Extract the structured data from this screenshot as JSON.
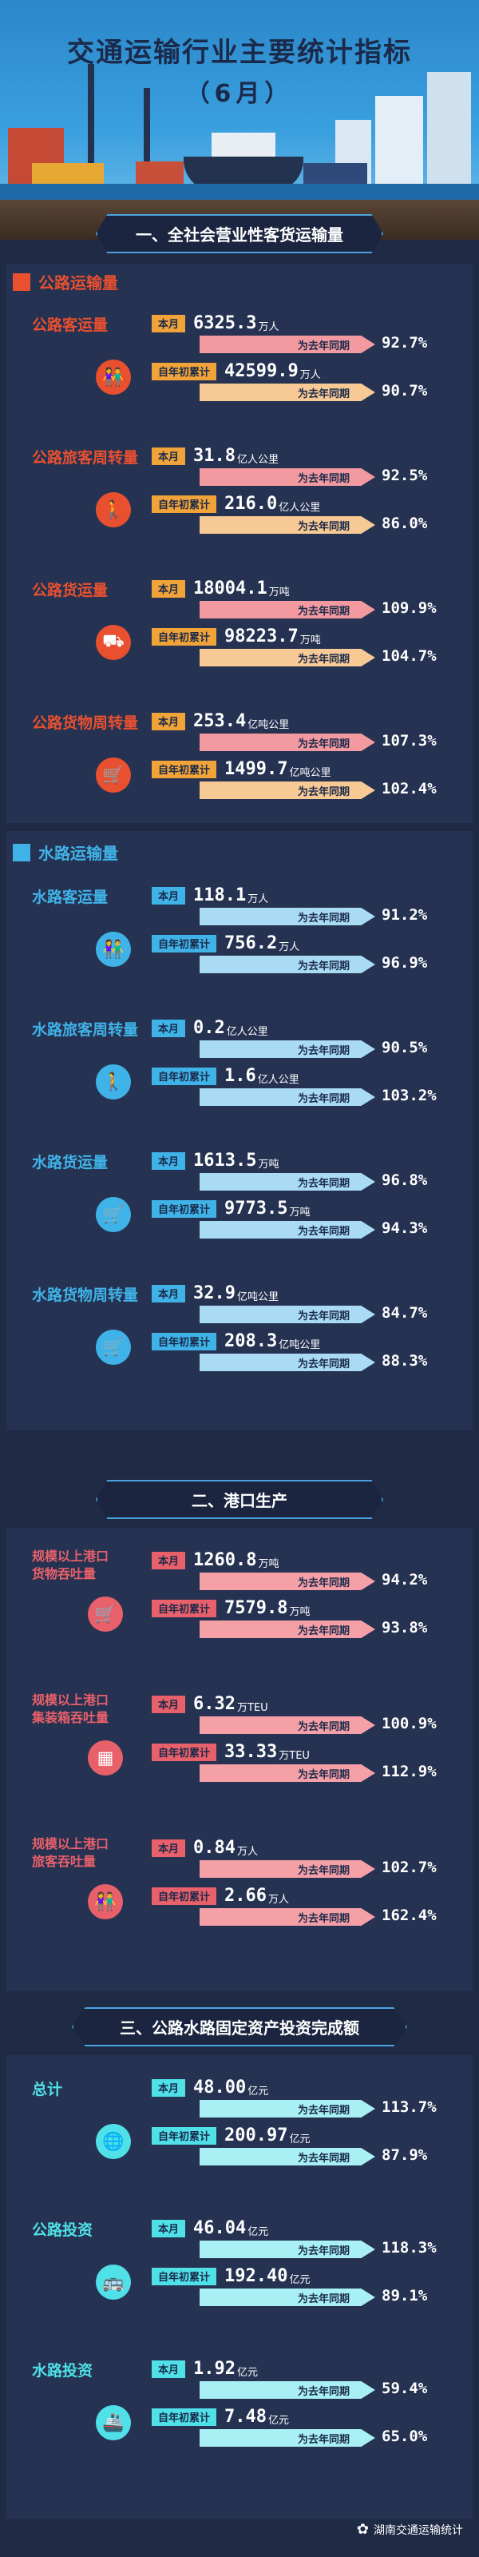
{
  "title": "交通运输行业主要统计指标",
  "subtitle": "（6月）",
  "section1": "一、全社会营业性客货运输量",
  "road_header": "公路运输量",
  "water_header": "水路运输量",
  "section2": "二、港口生产",
  "section3": "三、公路水路固定资产投资完成额",
  "tag_month": "本月",
  "tag_ytd": "自年初累计",
  "yoy": "为去年同期",
  "road": [
    {
      "label": "公路客运量",
      "icon": "people-icon",
      "month": "6325.3",
      "month_unit": "万人",
      "month_pct": "92.7%",
      "ytd": "42599.9",
      "ytd_unit": "万人",
      "ytd_pct": "90.7%"
    },
    {
      "label": "公路旅客周转量",
      "icon": "traveler-icon",
      "month": "31.8",
      "month_unit": "亿人公里",
      "month_pct": "92.5%",
      "ytd": "216.0",
      "ytd_unit": "亿人公里",
      "ytd_pct": "86.0%"
    },
    {
      "label": "公路货运量",
      "icon": "truck-icon",
      "month": "18004.1",
      "month_unit": "万吨",
      "month_pct": "109.9%",
      "ytd": "98223.7",
      "ytd_unit": "万吨",
      "ytd_pct": "104.7%"
    },
    {
      "label": "公路货物周转量",
      "icon": "cart-icon",
      "month": "253.4",
      "month_unit": "亿吨公里",
      "month_pct": "107.3%",
      "ytd": "1499.7",
      "ytd_unit": "亿吨公里",
      "ytd_pct": "102.4%"
    }
  ],
  "water": [
    {
      "label": "水路客运量",
      "icon": "people-icon",
      "month": "118.1",
      "month_unit": "万人",
      "month_pct": "91.2%",
      "ytd": "756.2",
      "ytd_unit": "万人",
      "ytd_pct": "96.9%"
    },
    {
      "label": "水路旅客周转量",
      "icon": "traveler-icon",
      "month": "0.2",
      "month_unit": "亿人公里",
      "month_pct": "90.5%",
      "ytd": "1.6",
      "ytd_unit": "亿人公里",
      "ytd_pct": "103.2%"
    },
    {
      "label": "水路货运量",
      "icon": "cart-icon",
      "month": "1613.5",
      "month_unit": "万吨",
      "month_pct": "96.8%",
      "ytd": "9773.5",
      "ytd_unit": "万吨",
      "ytd_pct": "94.3%"
    },
    {
      "label": "水路货物周转量",
      "icon": "cart-icon",
      "month": "32.9",
      "month_unit": "亿吨公里",
      "month_pct": "84.7%",
      "ytd": "208.3",
      "ytd_unit": "亿吨公里",
      "ytd_pct": "88.3%"
    }
  ],
  "port": [
    {
      "label1": "规模以上港口",
      "label2": "货物吞吐量",
      "icon": "cart-icon",
      "month": "1260.8",
      "month_unit": "万吨",
      "month_pct": "94.2%",
      "ytd": "7579.8",
      "ytd_unit": "万吨",
      "ytd_pct": "93.8%"
    },
    {
      "label1": "规模以上港口",
      "label2": "集装箱吞吐量",
      "icon": "container-icon",
      "month": "6.32",
      "month_unit": "万TEU",
      "month_pct": "100.9%",
      "ytd": "33.33",
      "ytd_unit": "万TEU",
      "ytd_pct": "112.9%"
    },
    {
      "label1": "规模以上港口",
      "label2": "旅客吞吐量",
      "icon": "people-icon",
      "month": "0.84",
      "month_unit": "万人",
      "month_pct": "102.7%",
      "ytd": "2.66",
      "ytd_unit": "万人",
      "ytd_pct": "162.4%"
    }
  ],
  "invest": [
    {
      "label": "总计",
      "icon": "globe-icon",
      "month": "48.00",
      "month_unit": "亿元",
      "month_pct": "113.7%",
      "ytd": "200.97",
      "ytd_unit": "亿元",
      "ytd_pct": "87.9%"
    },
    {
      "label": "公路投资",
      "icon": "bus-icon",
      "month": "46.04",
      "month_unit": "亿元",
      "month_pct": "118.3%",
      "ytd": "192.40",
      "ytd_unit": "亿元",
      "ytd_pct": "89.1%"
    },
    {
      "label": "水路投资",
      "icon": "ship-icon",
      "month": "1.92",
      "month_unit": "亿元",
      "month_pct": "59.4%",
      "ytd": "7.48",
      "ytd_unit": "亿元",
      "ytd_pct": "65.0%"
    }
  ],
  "watermark": "湖南交通运输统计",
  "colors": {
    "road": "#e8502f",
    "road_light": "#f39aa0",
    "road_tag": "#f0a338",
    "water": "#3fb3e8",
    "water_light": "#a9dcf4",
    "port": "#e8606a",
    "invest": "#4fe0e8"
  }
}
